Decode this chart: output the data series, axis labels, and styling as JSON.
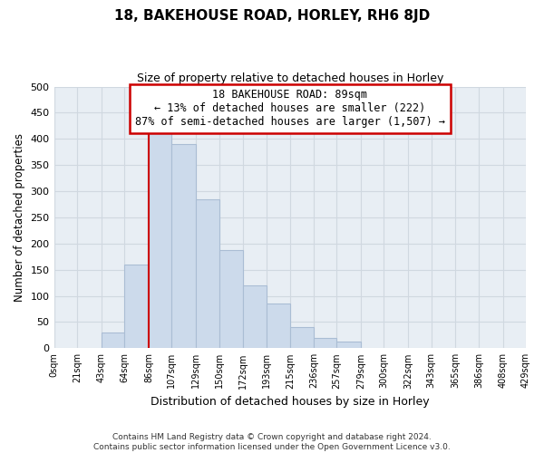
{
  "title": "18, BAKEHOUSE ROAD, HORLEY, RH6 8JD",
  "subtitle": "Size of property relative to detached houses in Horley",
  "xlabel": "Distribution of detached houses by size in Horley",
  "ylabel": "Number of detached properties",
  "footer_line1": "Contains HM Land Registry data © Crown copyright and database right 2024.",
  "footer_line2": "Contains public sector information licensed under the Open Government Licence v3.0.",
  "bin_edges": [
    0,
    21,
    43,
    64,
    86,
    107,
    129,
    150,
    172,
    193,
    215,
    236,
    257,
    279,
    300,
    322,
    343,
    365,
    386,
    408,
    429
  ],
  "bin_labels": [
    "0sqm",
    "21sqm",
    "43sqm",
    "64sqm",
    "86sqm",
    "107sqm",
    "129sqm",
    "150sqm",
    "172sqm",
    "193sqm",
    "215sqm",
    "236sqm",
    "257sqm",
    "279sqm",
    "300sqm",
    "322sqm",
    "343sqm",
    "365sqm",
    "386sqm",
    "408sqm",
    "429sqm"
  ],
  "bar_heights": [
    0,
    0,
    30,
    160,
    415,
    390,
    285,
    188,
    120,
    86,
    40,
    20,
    12,
    0,
    0,
    0,
    0,
    0,
    0,
    0
  ],
  "bar_color": "#ccdaeb",
  "bar_edge_color": "#aabdd4",
  "vline_x": 86,
  "vline_color": "#cc0000",
  "ylim": [
    0,
    500
  ],
  "yticks": [
    0,
    50,
    100,
    150,
    200,
    250,
    300,
    350,
    400,
    450,
    500
  ],
  "annotation_line1": "18 BAKEHOUSE ROAD: 89sqm",
  "annotation_line2": "← 13% of detached houses are smaller (222)",
  "annotation_line3": "87% of semi-detached houses are larger (1,507) →",
  "grid_color": "#d0d8e0",
  "background_color": "#e8eef4"
}
